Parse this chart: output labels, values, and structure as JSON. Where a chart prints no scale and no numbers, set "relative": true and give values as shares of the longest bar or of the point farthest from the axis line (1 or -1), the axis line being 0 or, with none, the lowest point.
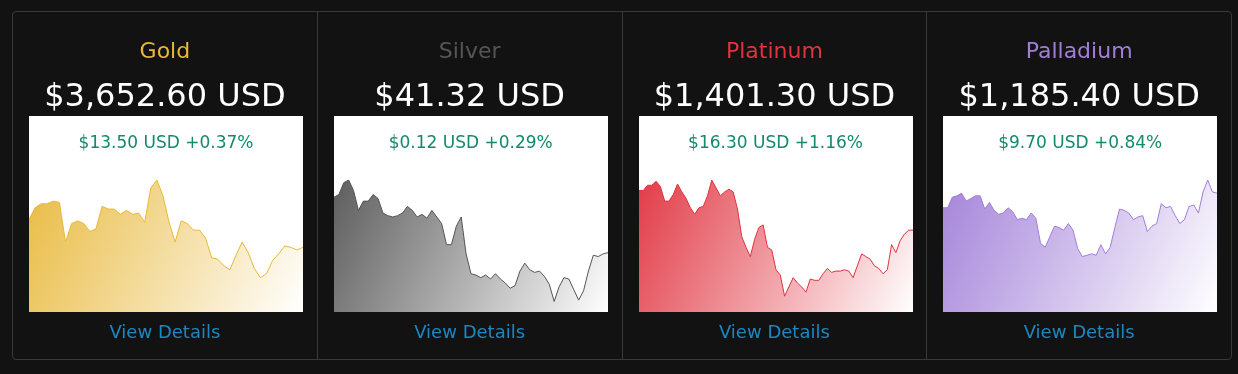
{
  "chart_data": [
    {
      "type": "area",
      "relative": true,
      "title": "Gold",
      "subtitle": "$3,652.60 USD",
      "annotations": [
        "$13.50 USD +0.37%",
        "View Details"
      ],
      "categories": [
        null,
        null,
        null,
        null,
        null,
        null,
        null,
        null,
        null,
        null,
        null,
        null,
        null,
        null,
        null,
        null,
        null,
        null,
        null,
        null,
        null,
        null,
        null,
        null,
        null,
        null,
        null,
        null,
        null,
        null,
        null,
        null,
        null,
        null,
        null,
        null,
        null,
        null,
        null,
        null,
        null,
        null,
        null,
        null,
        null,
        null
      ],
      "series": [
        {
          "color": "#e8b83a",
          "values": [
            0.7,
            0.79,
            0.82,
            0.82,
            0.84,
            0.83,
            0.53,
            0.67,
            0.69,
            0.67,
            0.61,
            0.63,
            0.8,
            0.78,
            0.78,
            0.74,
            0.77,
            0.74,
            0.75,
            0.68,
            0.94,
            1,
            0.88,
            0.68,
            0.53,
            0.69,
            0.67,
            0.62,
            0.62,
            0.56,
            0.41,
            0.4,
            0.35,
            0.32,
            0.43,
            0.53,
            0.45,
            0.33,
            0.26,
            0.29,
            0.39,
            0.44,
            0.5,
            0.49,
            0.47,
            0.49
          ]
        }
      ]
    },
    {
      "type": "area",
      "relative": true,
      "title": "Silver",
      "subtitle": "$41.32 USD",
      "annotations": [
        "$0.12 USD +0.29%",
        "View Details"
      ],
      "categories": [
        null,
        null,
        null,
        null,
        null,
        null,
        null,
        null,
        null,
        null,
        null,
        null,
        null,
        null,
        null,
        null,
        null,
        null,
        null,
        null,
        null,
        null,
        null,
        null,
        null,
        null,
        null,
        null,
        null,
        null,
        null,
        null,
        null,
        null,
        null,
        null,
        null,
        null,
        null,
        null,
        null,
        null,
        null,
        null,
        null,
        null,
        null,
        null,
        null,
        null,
        null,
        null,
        null,
        null,
        null,
        null,
        null
      ],
      "series": [
        {
          "color": "#555555",
          "values": [
            0.87,
            0.89,
            0.98,
            1,
            0.92,
            0.77,
            0.84,
            0.84,
            0.89,
            0.86,
            0.75,
            0.73,
            0.72,
            0.73,
            0.75,
            0.8,
            0.77,
            0.72,
            0.74,
            0.71,
            0.77,
            0.72,
            0.67,
            0.51,
            0.51,
            0.65,
            0.72,
            0.44,
            0.29,
            0.28,
            0.26,
            0.28,
            0.25,
            0.29,
            0.25,
            0.22,
            0.18,
            0.2,
            0.31,
            0.37,
            0.32,
            0.3,
            0.31,
            0.27,
            0.21,
            0.08,
            0.19,
            0.26,
            0.25,
            0.17,
            0.09,
            0.16,
            0.31,
            0.43,
            0.42,
            0.44,
            0.45
          ]
        }
      ]
    },
    {
      "type": "area",
      "relative": true,
      "title": "Platinum",
      "subtitle": "$1,401.30 USD",
      "annotations": [
        "$16.30 USD +1.16%",
        "View Details"
      ],
      "categories": [
        null,
        null,
        null,
        null,
        null,
        null,
        null,
        null,
        null,
        null,
        null,
        null,
        null,
        null,
        null,
        null,
        null,
        null,
        null,
        null,
        null,
        null,
        null,
        null,
        null,
        null,
        null,
        null,
        null,
        null,
        null,
        null,
        null,
        null,
        null,
        null,
        null,
        null,
        null,
        null,
        null,
        null,
        null,
        null,
        null,
        null,
        null,
        null,
        null,
        null,
        null,
        null,
        null,
        null,
        null,
        null,
        null,
        null,
        null,
        null,
        null,
        null,
        null,
        null,
        null
      ],
      "series": [
        {
          "color": "#e0323f",
          "values": [
            0.92,
            0.92,
            0.96,
            0.96,
            0.99,
            0.95,
            0.84,
            0.84,
            0.89,
            0.97,
            0.91,
            0.86,
            0.79,
            0.74,
            0.79,
            0.8,
            0.88,
            1,
            0.94,
            0.88,
            0.91,
            0.93,
            0.91,
            0.78,
            0.57,
            0.49,
            0.42,
            0.55,
            0.64,
            0.66,
            0.49,
            0.47,
            0.32,
            0.28,
            0.12,
            0.19,
            0.26,
            0.22,
            0.19,
            0.15,
            0.25,
            0.24,
            0.24,
            0.29,
            0.33,
            0.3,
            0.31,
            0.31,
            0.32,
            0.31,
            0.26,
            0.35,
            0.44,
            0.42,
            0.4,
            0.35,
            0.33,
            0.29,
            0.32,
            0.51,
            0.45,
            0.54,
            0.59,
            0.62,
            0.62
          ]
        }
      ]
    },
    {
      "type": "area",
      "relative": true,
      "title": "Palladium",
      "subtitle": "$1,185.40 USD",
      "annotations": [
        "$9.70 USD +0.84%",
        "View Details"
      ],
      "categories": [
        null,
        null,
        null,
        null,
        null,
        null,
        null,
        null,
        null,
        null,
        null,
        null,
        null,
        null,
        null,
        null,
        null,
        null,
        null,
        null,
        null,
        null,
        null,
        null,
        null,
        null,
        null,
        null,
        null,
        null,
        null,
        null,
        null,
        null,
        null,
        null,
        null,
        null,
        null,
        null,
        null,
        null,
        null,
        null,
        null,
        null,
        null,
        null,
        null,
        null,
        null,
        null,
        null,
        null,
        null,
        null,
        null,
        null,
        null,
        null
      ],
      "series": [
        {
          "color": "#a07ed8",
          "values": [
            0.79,
            0.79,
            0.87,
            0.88,
            0.9,
            0.84,
            0.86,
            0.88,
            0.88,
            0.78,
            0.83,
            0.77,
            0.74,
            0.75,
            0.79,
            0.76,
            0.7,
            0.71,
            0.7,
            0.75,
            0.71,
            0.52,
            0.49,
            0.57,
            0.65,
            0.64,
            0.62,
            0.67,
            0.62,
            0.48,
            0.42,
            0.43,
            0.44,
            0.43,
            0.51,
            0.44,
            0.49,
            0.64,
            0.78,
            0.77,
            0.75,
            0.7,
            0.72,
            0.73,
            0.61,
            0.65,
            0.67,
            0.82,
            0.79,
            0.8,
            0.73,
            0.67,
            0.7,
            0.8,
            0.81,
            0.75,
            0.91,
            1,
            0.91,
            0.9
          ]
        }
      ]
    }
  ]
}
